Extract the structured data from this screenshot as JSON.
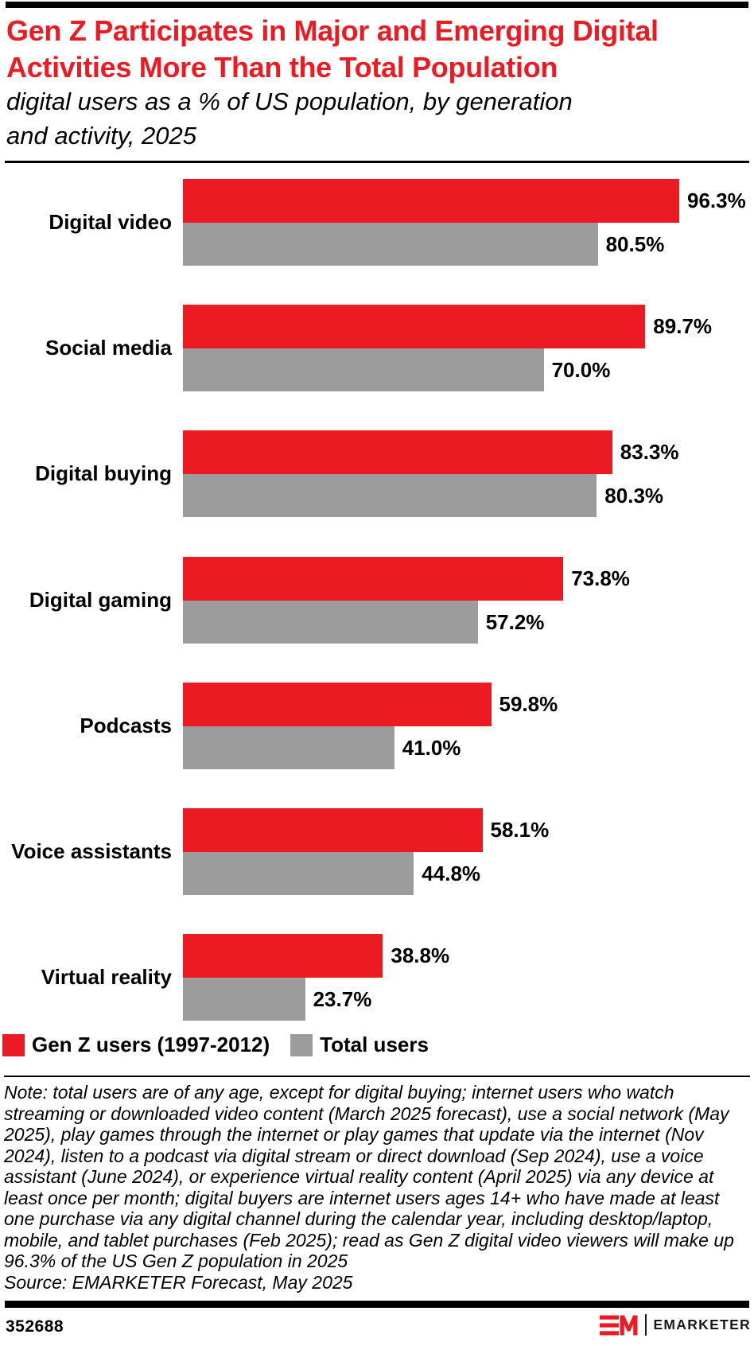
{
  "header": {
    "title_lines": [
      "Gen Z Participates in Major and Emerging Digital",
      "Activities More Than the Total Population"
    ],
    "subtitle_lines": [
      "digital users as a % of US population, by generation",
      "and activity, 2025"
    ],
    "title_color": "#EC1B23"
  },
  "chart_data": {
    "type": "bar",
    "orientation": "horizontal",
    "title": "Gen Z Participates in Major and Emerging Digital Activities More Than the Total Population",
    "subtitle": "digital users as a % of US population, by generation and activity, 2025",
    "categories": [
      "Digital video",
      "Social media",
      "Digital buying",
      "Digital gaming",
      "Podcasts",
      "Voice assistants",
      "Virtual reality"
    ],
    "series": [
      {
        "name": "Gen Z users (1997-2012)",
        "color": "#EC1B23",
        "values": [
          96.3,
          89.7,
          83.3,
          73.8,
          59.8,
          58.1,
          38.8
        ],
        "labels": [
          "96.3%",
          "89.7%",
          "83.3%",
          "73.8%",
          "59.8%",
          "58.1%",
          "38.8%"
        ]
      },
      {
        "name": "Total users",
        "color": "#9C9C9C",
        "values": [
          80.5,
          70.0,
          80.3,
          57.2,
          41.0,
          44.8,
          23.7
        ],
        "labels": [
          "80.5%",
          "70.0%",
          "80.3%",
          "57.2%",
          "41.0%",
          "44.8%",
          "23.7%"
        ]
      }
    ],
    "value_suffix": "%",
    "xlim": [
      0,
      100
    ],
    "grid": false,
    "value_labels": true,
    "legend_position": "bottom-left"
  },
  "note": "Note: total users are of any age, except for digital buying; internet users who watch streaming or downloaded video content (March 2025 forecast), use a social network (May 2025), play games through the internet or play games that update via the internet (Nov 2024), listen to a podcast via digital stream or direct download (Sep 2024), use a voice assistant (June 2024), or experience virtual reality content (April 2025) via any device at least once per month; digital buyers are internet users ages 14+ who have made at least one purchase via any digital channel during the calendar year, including desktop/laptop, mobile, and tablet purchases (Feb 2025); read as Gen Z digital video viewers will make up 96.3% of the US Gen Z population in 2025",
  "source": "Source: EMARKETER Forecast, May 2025",
  "footer": {
    "chart_id": "352688",
    "brand_wordmark": "EMARKETER",
    "monogram": "EM",
    "brand_red": "#EC1B23"
  },
  "layout_colors": {
    "rules": "#000000",
    "text": "#000000"
  }
}
